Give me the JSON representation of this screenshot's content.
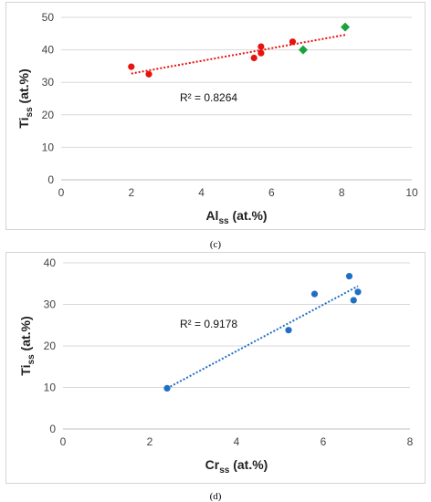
{
  "chart_data": [
    {
      "type": "scatter",
      "panel_label": "(c)",
      "xlabel": {
        "main": "Al",
        "sub": "ss",
        "rest": " (at.%)"
      },
      "ylabel": {
        "main": "Ti",
        "sub": "ss",
        "rest": " (at.%)"
      },
      "xlim": [
        0,
        10
      ],
      "ylim": [
        0,
        50
      ],
      "xticks": [
        0,
        2,
        4,
        6,
        8,
        10
      ],
      "yticks": [
        0,
        10,
        20,
        30,
        40,
        50
      ],
      "grid": "horizontal",
      "series": [
        {
          "marker": "circle",
          "color": "#e8120f",
          "x": [
            2.0,
            2.5,
            5.5,
            5.7,
            5.7,
            6.6
          ],
          "y": [
            34.8,
            32.5,
            37.5,
            39.0,
            41.0,
            42.5
          ]
        },
        {
          "marker": "diamond",
          "color": "#1aa33d",
          "x": [
            6.9,
            8.1
          ],
          "y": [
            40.0,
            47.0
          ]
        }
      ],
      "trendline": {
        "color": "#e8120f",
        "x": [
          2.0,
          8.1
        ],
        "y": [
          32.7,
          44.6
        ]
      },
      "r2_label": "R² = 0.8264"
    },
    {
      "type": "scatter",
      "panel_label": "(d)",
      "xlabel": {
        "main": "Cr",
        "sub": "ss",
        "rest": " (at.%)"
      },
      "ylabel": {
        "main": "Ti",
        "sub": "ss",
        "rest": " (at.%)"
      },
      "xlim": [
        0,
        8
      ],
      "ylim": [
        0,
        40
      ],
      "xticks": [
        0,
        2,
        4,
        6,
        8
      ],
      "yticks": [
        0,
        10,
        20,
        30,
        40
      ],
      "grid": "horizontal",
      "series": [
        {
          "marker": "circle",
          "color": "#1f6fc4",
          "x": [
            2.4,
            5.2,
            5.8,
            6.6,
            6.7,
            6.8
          ],
          "y": [
            9.8,
            23.8,
            32.5,
            36.8,
            31.0,
            33.0
          ]
        }
      ],
      "trendline": {
        "color": "#1f6fc4",
        "x": [
          2.4,
          6.8
        ],
        "y": [
          9.8,
          34.4
        ]
      },
      "r2_label": "R² = 0.9178"
    }
  ]
}
